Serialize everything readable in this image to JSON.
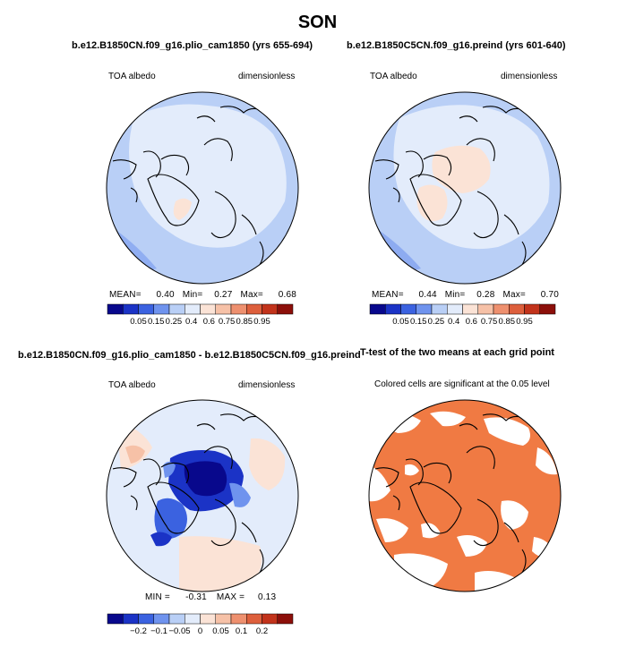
{
  "figure": {
    "title": "SON"
  },
  "chart_data": [
    {
      "type": "heatmap",
      "projection": "north polar stereographic",
      "title": "b.e12.B1850CN.f09_g16.plio_cam1850 (yrs 655-694)",
      "left_label": "TOA albedo",
      "right_label": "dimensionless",
      "stats": {
        "mean_label": "MEAN=",
        "mean": "0.40",
        "min_label": "Min=",
        "min": "0.27",
        "max_label": "Max=",
        "max": "0.68"
      },
      "colorbar": {
        "levels": [
          "0.05",
          "0.15",
          "0.25",
          "0.4",
          "0.6",
          "0.75",
          "0.85",
          "0.95"
        ],
        "colors": [
          "#08088c",
          "#1b33c6",
          "#3b62e0",
          "#6f93ee",
          "#b9cff6",
          "#e3ecfb",
          "#fbe3d6",
          "#f6c1a7",
          "#ee906f",
          "#dd5f3c",
          "#c2331b",
          "#8c0f0a"
        ]
      }
    },
    {
      "type": "heatmap",
      "projection": "north polar stereographic",
      "title": "b.e12.B1850C5CN.f09_g16.preind (yrs 601-640)",
      "left_label": "TOA albedo",
      "right_label": "dimensionless",
      "stats": {
        "mean_label": "MEAN=",
        "mean": "0.44",
        "min_label": "Min=",
        "min": "0.28",
        "max_label": "Max=",
        "max": "0.70"
      },
      "colorbar": {
        "levels": [
          "0.05",
          "0.15",
          "0.25",
          "0.4",
          "0.6",
          "0.75",
          "0.85",
          "0.95"
        ],
        "colors": [
          "#08088c",
          "#1b33c6",
          "#3b62e0",
          "#6f93ee",
          "#b9cff6",
          "#e3ecfb",
          "#fbe3d6",
          "#f6c1a7",
          "#ee906f",
          "#dd5f3c",
          "#c2331b",
          "#8c0f0a"
        ]
      }
    },
    {
      "type": "heatmap",
      "projection": "north polar stereographic",
      "title": "b.e12.B1850CN.f09_g16.plio_cam1850 - b.e12.B1850C5CN.f09_g16.preind",
      "left_label": "TOA albedo",
      "right_label": "dimensionless",
      "stats": {
        "min_label": "MIN =",
        "min": "-0.31",
        "max_label": "MAX =",
        "max": "0.13"
      },
      "colorbar": {
        "levels": [
          "−0.2",
          "−0.1",
          "−0.05",
          "0",
          "0.05",
          "0.1",
          "0.2"
        ],
        "colors": [
          "#08088c",
          "#1b33c6",
          "#3b62e0",
          "#6f93ee",
          "#b9cff6",
          "#e3ecfb",
          "#fbe3d6",
          "#f6c1a7",
          "#ee906f",
          "#dd5f3c",
          "#c2331b",
          "#8c0f0a"
        ]
      }
    },
    {
      "type": "heatmap",
      "projection": "north polar stereographic",
      "title": "T-test of the two means at each grid point",
      "subtitle": "Colored cells are significant at the 0.05 level",
      "significance_color": "#f07a43"
    }
  ]
}
